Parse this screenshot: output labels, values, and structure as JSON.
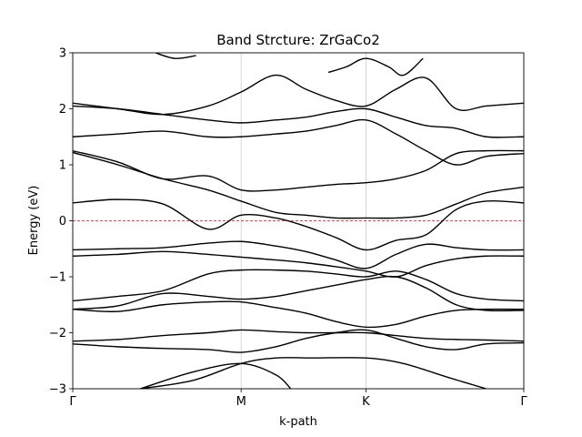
{
  "chart_data": {
    "type": "line",
    "title": "Band Strcture: ZrGaCo2",
    "xlabel": "k-path",
    "ylabel": "Energy (eV)",
    "xlim": [
      0,
      3
    ],
    "ylim": [
      -3,
      3
    ],
    "yticks": [
      -3,
      -2,
      -1,
      0,
      1,
      2,
      3
    ],
    "ytick_labels": [
      "−3",
      "−2",
      "−1",
      "0",
      "1",
      "2",
      "3"
    ],
    "kpoints": [
      {
        "label": "Γ",
        "x": 0
      },
      {
        "label": "M",
        "x": 1.12
      },
      {
        "label": "K",
        "x": 1.95
      },
      {
        "label": "Γ",
        "x": 3
      }
    ],
    "fermi_level": 0,
    "grid": "vertical lines at high-symmetry points",
    "colors": {
      "bands": "#000000",
      "fermi": "#ff0000",
      "grid": "#cccccc"
    },
    "series": [
      {
        "x": [
          0.0,
          0.3,
          0.6,
          0.9,
          1.12,
          1.35,
          1.55,
          1.75,
          1.95,
          2.15,
          2.35,
          2.55,
          2.75,
          3.0
        ],
        "values": [
          -2.2,
          -2.25,
          -2.28,
          -2.3,
          -2.35,
          -2.25,
          -2.1,
          -2.0,
          -1.95,
          -2.1,
          -2.25,
          -2.3,
          -2.2,
          -2.18
        ]
      },
      {
        "x": [
          0.0,
          0.3,
          0.6,
          0.9,
          1.12,
          1.35,
          1.55,
          1.75,
          1.95,
          2.15,
          2.35,
          2.55,
          2.75,
          3.0
        ],
        "values": [
          -2.15,
          -2.12,
          -2.05,
          -2.0,
          -1.95,
          -1.98,
          -2.0,
          -2.0,
          -2.0,
          -2.05,
          -2.1,
          -2.12,
          -2.13,
          -2.15
        ]
      },
      {
        "x": [
          0.0,
          0.3,
          0.6,
          0.9,
          1.12,
          1.35,
          1.55,
          1.75,
          1.95,
          2.15,
          2.35,
          2.55,
          2.75,
          3.0
        ],
        "values": [
          -1.58,
          -1.62,
          -1.5,
          -1.45,
          -1.45,
          -1.55,
          -1.65,
          -1.8,
          -1.9,
          -1.85,
          -1.7,
          -1.6,
          -1.58,
          -1.58
        ]
      },
      {
        "x": [
          0.0,
          0.3,
          0.6,
          0.9,
          1.12,
          1.35,
          1.55,
          1.75,
          1.95,
          2.15,
          2.35,
          2.55,
          2.75,
          3.0
        ],
        "values": [
          -1.58,
          -1.52,
          -1.3,
          -1.35,
          -1.4,
          -1.35,
          -1.25,
          -1.15,
          -1.05,
          -1.0,
          -1.2,
          -1.5,
          -1.6,
          -1.6
        ]
      },
      {
        "x": [
          0.0,
          0.3,
          0.6,
          0.9,
          1.12,
          1.35,
          1.55,
          1.75,
          1.95,
          2.15,
          2.35,
          2.55,
          2.75,
          3.0
        ],
        "values": [
          -1.43,
          -1.35,
          -1.25,
          -0.95,
          -0.88,
          -0.88,
          -0.9,
          -0.95,
          -1.0,
          -0.9,
          -1.05,
          -1.3,
          -1.4,
          -1.43
        ]
      },
      {
        "x": [
          0.0,
          0.3,
          0.6,
          0.9,
          1.12,
          1.35,
          1.55,
          1.75,
          1.95,
          2.15,
          2.35,
          2.55,
          2.75,
          3.0
        ],
        "values": [
          -0.63,
          -0.6,
          -0.55,
          -0.6,
          -0.65,
          -0.7,
          -0.75,
          -0.82,
          -0.9,
          -1.0,
          -0.8,
          -0.68,
          -0.63,
          -0.63
        ]
      },
      {
        "x": [
          0.0,
          0.3,
          0.6,
          0.9,
          1.12,
          1.35,
          1.55,
          1.75,
          1.95,
          2.15,
          2.35,
          2.55,
          2.75,
          3.0
        ],
        "values": [
          -0.52,
          -0.5,
          -0.48,
          -0.4,
          -0.37,
          -0.45,
          -0.55,
          -0.7,
          -0.85,
          -0.6,
          -0.42,
          -0.48,
          -0.52,
          -0.52
        ]
      },
      {
        "x": [
          0.0,
          0.3,
          0.6,
          0.9,
          1.12,
          1.35,
          1.55,
          1.75,
          1.95,
          2.15,
          2.35,
          2.55,
          2.75,
          3.0
        ],
        "values": [
          0.32,
          0.38,
          0.3,
          -0.15,
          0.1,
          0.05,
          -0.1,
          -0.3,
          -0.52,
          -0.35,
          -0.25,
          0.2,
          0.35,
          0.32
        ]
      },
      {
        "x": [
          0.0,
          0.3,
          0.6,
          0.9,
          1.12,
          1.35,
          1.55,
          1.75,
          1.95,
          2.15,
          2.35,
          2.55,
          2.75,
          3.0
        ],
        "values": [
          1.22,
          1.0,
          0.75,
          0.55,
          0.35,
          0.15,
          0.1,
          0.05,
          0.05,
          0.05,
          0.1,
          0.3,
          0.5,
          0.6
        ]
      },
      {
        "x": [
          0.0,
          0.3,
          0.6,
          0.9,
          1.12,
          1.35,
          1.55,
          1.75,
          1.95,
          2.15,
          2.35,
          2.55,
          2.75,
          3.0
        ],
        "values": [
          1.25,
          1.05,
          0.75,
          0.8,
          0.55,
          0.55,
          0.6,
          0.65,
          0.68,
          0.75,
          0.9,
          1.2,
          1.25,
          1.25
        ]
      },
      {
        "x": [
          0.0,
          0.3,
          0.6,
          0.9,
          1.12,
          1.35,
          1.55,
          1.75,
          1.95,
          2.15,
          2.35,
          2.55,
          2.75,
          3.0
        ],
        "values": [
          1.5,
          1.55,
          1.6,
          1.5,
          1.5,
          1.55,
          1.6,
          1.7,
          1.8,
          1.55,
          1.25,
          1.0,
          1.15,
          1.2
        ]
      },
      {
        "x": [
          0.0,
          0.3,
          0.6,
          0.9,
          1.12,
          1.35,
          1.55,
          1.75,
          1.95,
          2.15,
          2.35,
          2.55,
          2.75,
          3.0
        ],
        "values": [
          2.05,
          2.0,
          1.9,
          1.8,
          1.75,
          1.8,
          1.85,
          1.95,
          2.0,
          1.85,
          1.7,
          1.65,
          1.5,
          1.5
        ]
      },
      {
        "x": [
          0.0,
          0.3,
          0.6,
          0.9,
          1.12,
          1.35,
          1.55,
          1.75,
          1.95,
          2.15,
          2.35,
          2.55,
          2.75,
          3.0
        ],
        "values": [
          2.1,
          2.0,
          1.9,
          2.05,
          2.3,
          2.6,
          2.35,
          2.15,
          2.05,
          2.35,
          2.55,
          2.0,
          2.05,
          2.1
        ]
      },
      {
        "x": [
          1.7,
          1.82,
          1.95,
          2.1,
          2.2,
          2.33
        ],
        "values": [
          2.65,
          2.75,
          2.9,
          2.75,
          2.6,
          2.9
        ]
      },
      {
        "x": [
          0.55,
          0.68,
          0.82
        ],
        "values": [
          3.0,
          2.9,
          2.95
        ]
      },
      {
        "x": [
          0.45,
          0.8,
          1.12,
          1.35,
          1.6,
          1.95,
          2.2,
          2.5,
          2.75
        ],
        "values": [
          -3.0,
          -2.85,
          -2.55,
          -2.45,
          -2.45,
          -2.45,
          -2.55,
          -2.8,
          -3.0
        ]
      },
      {
        "x": [
          0.45,
          0.8,
          1.12,
          1.35,
          1.45
        ],
        "values": [
          -3.0,
          -2.7,
          -2.55,
          -2.75,
          -3.0
        ]
      }
    ]
  }
}
